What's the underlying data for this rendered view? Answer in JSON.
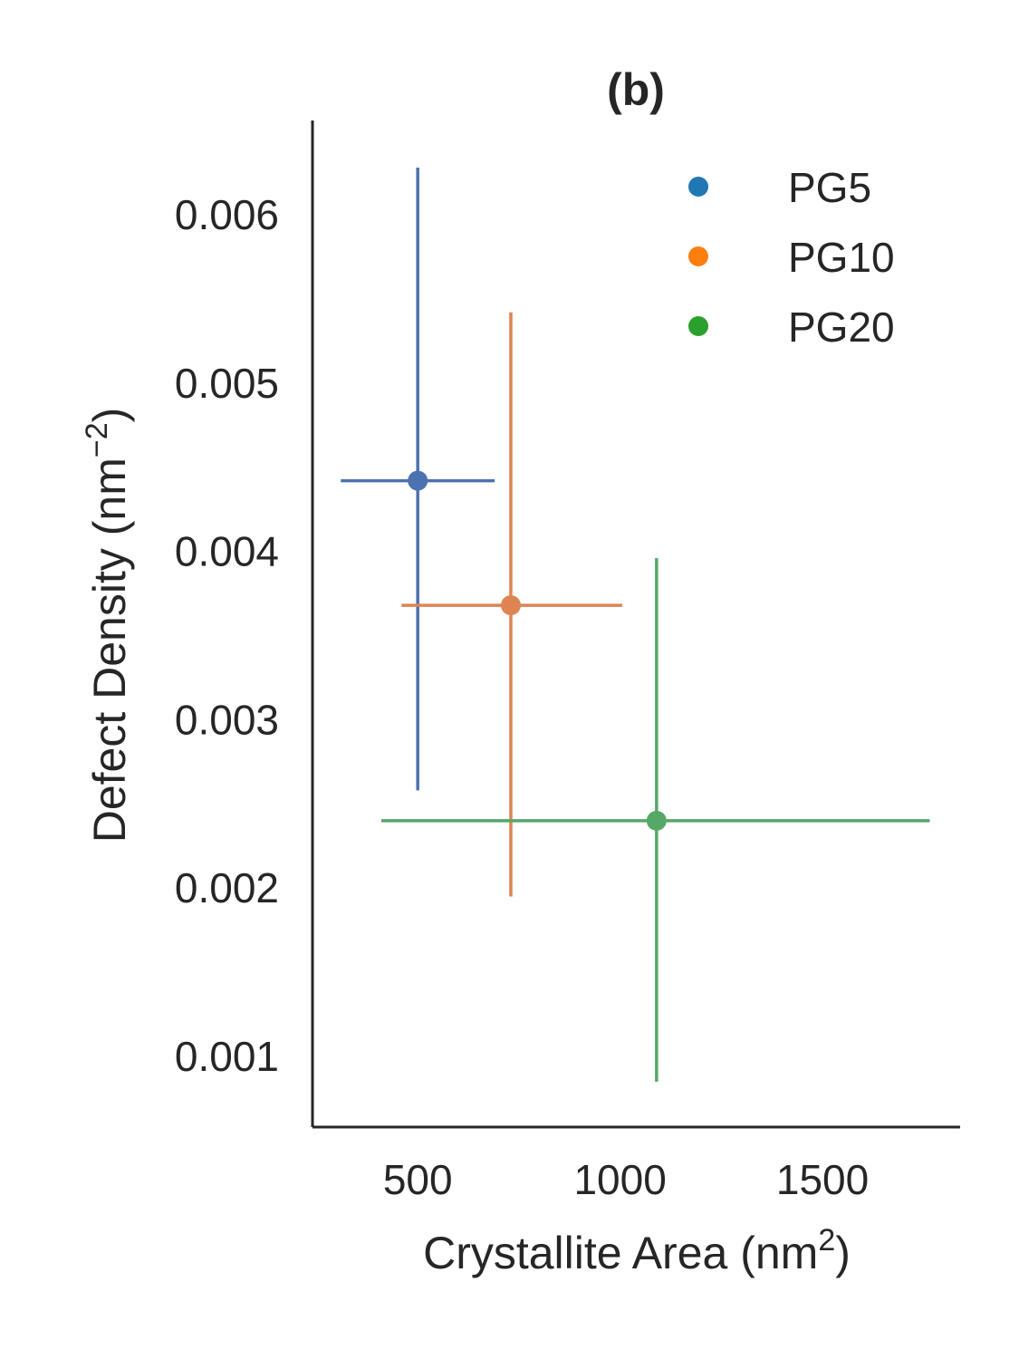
{
  "chart_data": {
    "type": "scatter",
    "title": "(b)",
    "xlabel": "Crystallite Area (nm",
    "xlabel_sup": "2",
    "xlabel_end": ")",
    "ylabel": "Defect Density (nm",
    "ylabel_sup": "−2",
    "ylabel_end": ")",
    "xlim": [
      240,
      1840
    ],
    "ylim": [
      0.00058,
      0.00656
    ],
    "xticks": [
      500,
      1000,
      1500
    ],
    "yticks": [
      0.001,
      0.002,
      0.003,
      0.004,
      0.005,
      0.006
    ],
    "xtick_labels": [
      "500",
      "1000",
      "1500"
    ],
    "ytick_labels": [
      "0.001",
      "0.002",
      "0.003",
      "0.004",
      "0.005",
      "0.006"
    ],
    "grid": false,
    "legend_position": "top-right",
    "series": [
      {
        "name": "PG5",
        "legend_color": "#1f77b4",
        "color": "#4c72b0",
        "x": 500,
        "y": 0.00442,
        "xerr": [
          310,
          690
        ],
        "yerr": [
          0.00258,
          0.00628
        ]
      },
      {
        "name": "PG10",
        "legend_color": "#ff7f0e",
        "color": "#dd8452",
        "x": 730,
        "y": 0.00368,
        "xerr": [
          460,
          1005
        ],
        "yerr": [
          0.00195,
          0.00542
        ]
      },
      {
        "name": "PG20",
        "legend_color": "#2ca02c",
        "color": "#55a868",
        "x": 1090,
        "y": 0.0024,
        "xerr": [
          410,
          1765
        ],
        "yerr": [
          0.00085,
          0.00396
        ]
      }
    ]
  }
}
